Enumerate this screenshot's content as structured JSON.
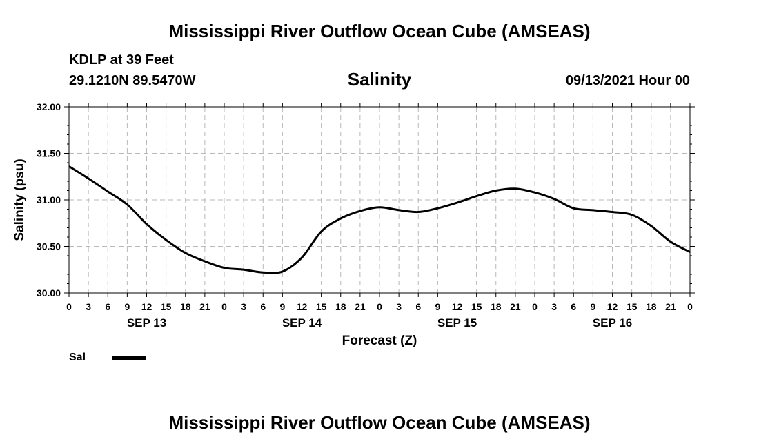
{
  "header": {
    "title": "Mississippi River Outflow Ocean Cube (AMSEAS)",
    "station": "KDLP at 39 Feet",
    "coords": "29.1210N  89.5470W",
    "subtitle": "Salinity",
    "datetime": "09/13/2021 Hour 00"
  },
  "footer": {
    "title": "Mississippi River Outflow Ocean Cube (AMSEAS)"
  },
  "legend": {
    "label": "Sal",
    "color": "#000000"
  },
  "chart_data": {
    "type": "line",
    "title": "Salinity",
    "xlabel": "Forecast (Z)",
    "ylabel": "Salinity (psu)",
    "xlim": [
      0,
      96
    ],
    "ylim": [
      30.0,
      32.0
    ],
    "grid": true,
    "y_ticks": [
      "30.00",
      "30.50",
      "31.00",
      "31.50",
      "32.00"
    ],
    "x_ticks": [
      "0",
      "3",
      "6",
      "9",
      "12",
      "15",
      "18",
      "21",
      "0",
      "3",
      "6",
      "9",
      "12",
      "15",
      "18",
      "21",
      "0",
      "3",
      "6",
      "9",
      "12",
      "15",
      "18",
      "21",
      "0",
      "3",
      "6",
      "9",
      "12",
      "15",
      "18",
      "21",
      "0"
    ],
    "day_labels": [
      {
        "label": "SEP 13",
        "hour": 12
      },
      {
        "label": "SEP 14",
        "hour": 36
      },
      {
        "label": "SEP 15",
        "hour": 60
      },
      {
        "label": "SEP 16",
        "hour": 84
      }
    ],
    "series": [
      {
        "name": "Sal",
        "x": [
          0,
          3,
          6,
          9,
          12,
          15,
          18,
          21,
          24,
          27,
          30,
          33,
          36,
          39,
          42,
          45,
          48,
          51,
          54,
          57,
          60,
          63,
          66,
          69,
          72,
          75,
          78,
          81,
          84,
          87,
          90,
          93,
          96
        ],
        "values": [
          31.36,
          31.23,
          31.09,
          30.95,
          30.74,
          30.57,
          30.43,
          30.34,
          30.27,
          30.25,
          30.22,
          30.23,
          30.38,
          30.66,
          30.8,
          30.88,
          30.92,
          30.89,
          30.87,
          30.91,
          30.97,
          31.04,
          31.1,
          31.12,
          31.08,
          31.01,
          30.91,
          30.89,
          30.87,
          30.84,
          30.72,
          30.55,
          30.44
        ]
      }
    ]
  }
}
